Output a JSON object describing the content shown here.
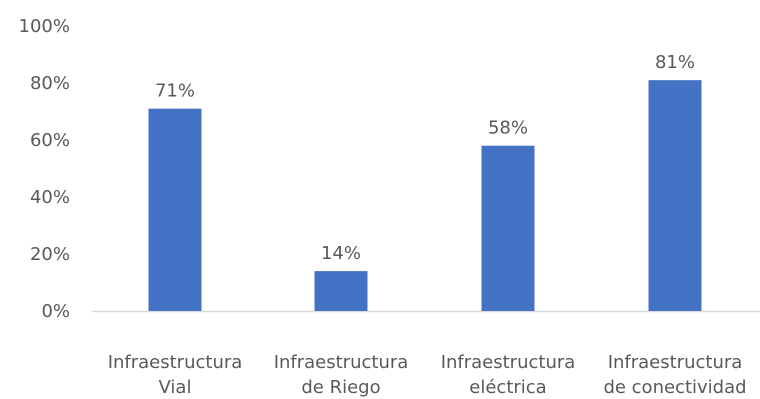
{
  "colors": {
    "bar": "#4472c4",
    "axis": "#d9d9d9",
    "text": "#595959"
  },
  "chart_data": {
    "type": "bar",
    "title": "",
    "xlabel": "",
    "ylabel": "",
    "ylim": [
      0,
      100
    ],
    "grid": false,
    "legend": "none",
    "y_ticks": [
      0,
      20,
      40,
      60,
      80,
      100
    ],
    "y_tick_labels": [
      "0%",
      "20%",
      "40%",
      "60%",
      "80%",
      "100%"
    ],
    "categories": [
      [
        "Infraestructura",
        "Vial"
      ],
      [
        "Infraestructura",
        "de Riego"
      ],
      [
        "Infraestructura",
        "eléctrica"
      ],
      [
        "Infraestructura",
        "de conectividad"
      ]
    ],
    "values": [
      71,
      14,
      58,
      81
    ],
    "value_labels": [
      "71%",
      "14%",
      "58%",
      "81%"
    ]
  }
}
